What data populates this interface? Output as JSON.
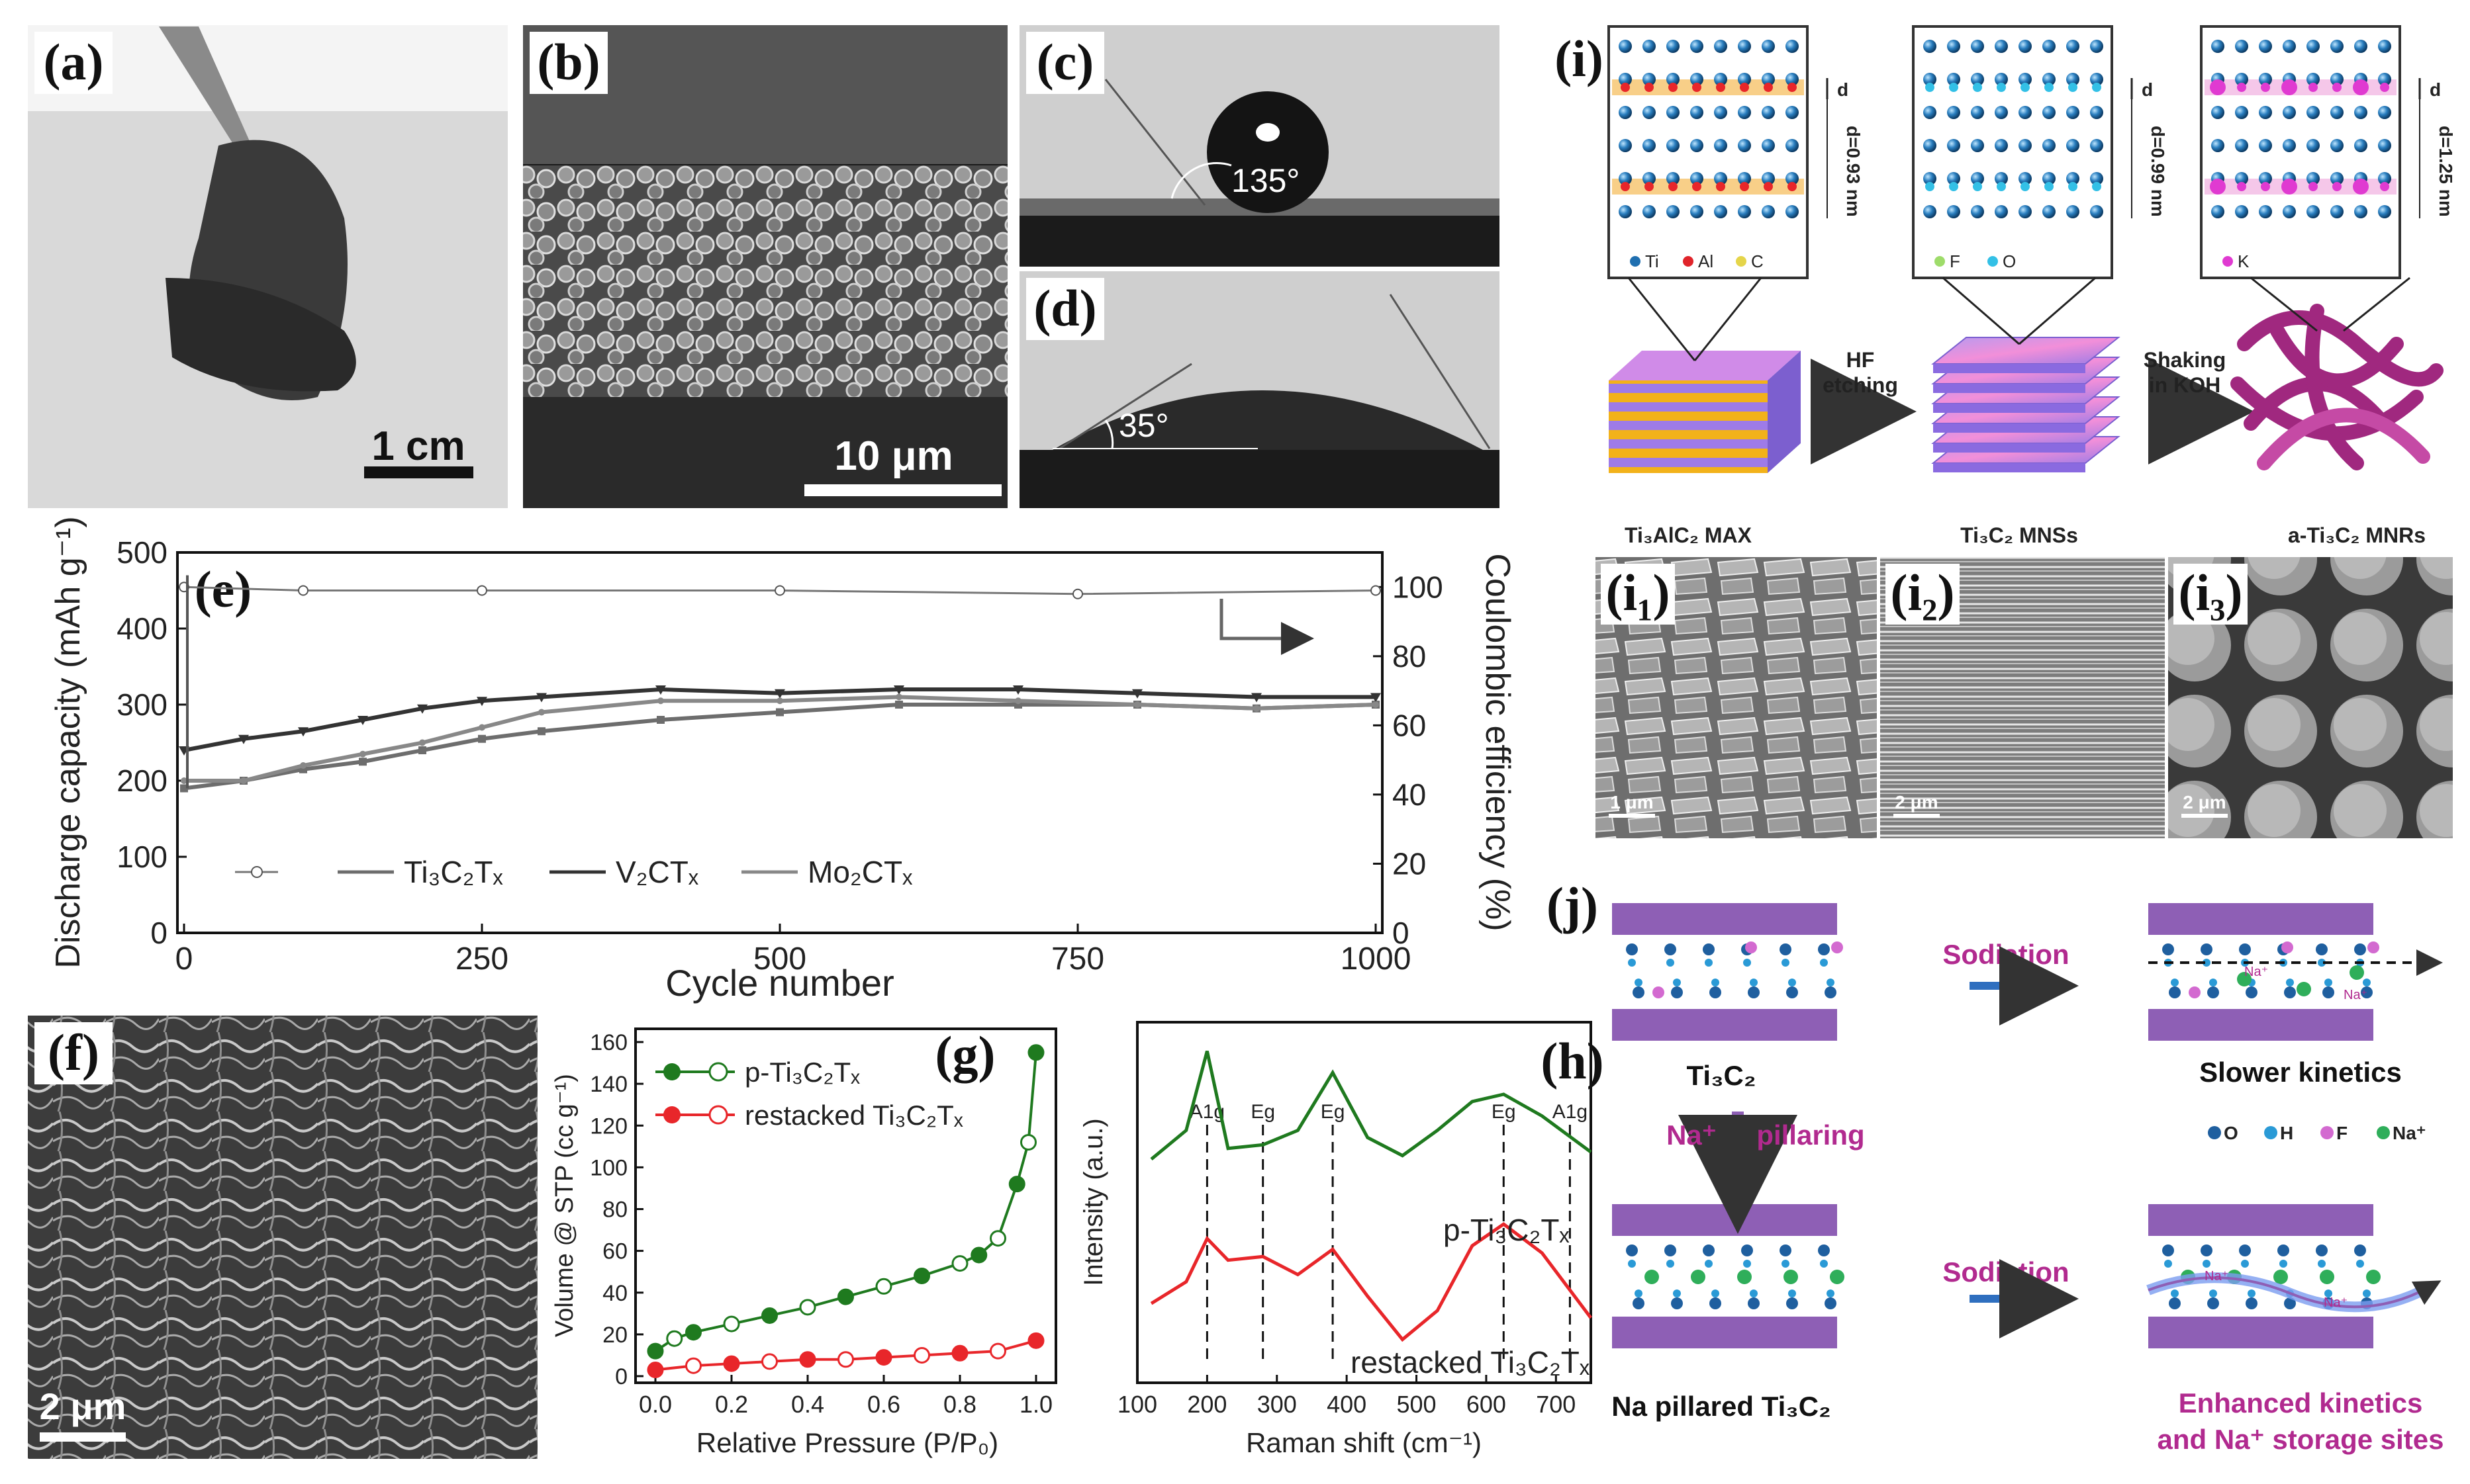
{
  "panels": {
    "a": {
      "label": "(a)",
      "scale_bar": "1 cm"
    },
    "b": {
      "label": "(b)",
      "scale_bar": "10 μm"
    },
    "c": {
      "label": "(c)",
      "angle": "135°"
    },
    "d": {
      "label": "(d)",
      "angle": "35°"
    },
    "e": {
      "label": "(e)"
    },
    "f": {
      "label": "(f)",
      "scale_bar": "2 μm"
    },
    "g": {
      "label": "(g)"
    },
    "h": {
      "label": "(h)"
    },
    "i": {
      "label": "(i)",
      "spacing": [
        "d=0.93 nm",
        "d=0.99 nm",
        "d=1.25 nm"
      ],
      "d_mark": "d",
      "legend1": [
        "Ti",
        "Al",
        "C"
      ],
      "legend2": [
        "F",
        "O"
      ],
      "legend3": [
        "K"
      ],
      "step1": [
        "HF",
        "etching"
      ],
      "step2": [
        "Shaking",
        "in KOH"
      ],
      "names": [
        "Ti₃AlC₂ MAX",
        "Ti₃C₂ MNSs",
        "a-Ti₃C₂ MNRs"
      ],
      "sub_labels": [
        "(i₁)",
        "(i₂)",
        "(i₃)"
      ],
      "scale_bars": [
        "1 μm",
        "2 μm",
        "2 μm"
      ]
    },
    "j": {
      "label": "(j)",
      "sodiation": "Sodiation",
      "top_material": "Ti₃C₂",
      "pillaring_na": "Na⁺",
      "pillaring_word": "pillaring",
      "bottom_material": "Na pillared Ti₃C₂",
      "slow": "Slower kinetics",
      "enhanced": [
        "Enhanced kinetics",
        "and Na⁺ storage sites"
      ],
      "legend": [
        "O",
        "H",
        "F",
        "Na⁺"
      ],
      "na_small": "Na⁺"
    }
  },
  "chart_data": [
    {
      "panel": "e",
      "type": "line",
      "xlabel": "Cycle number",
      "ylabel": "Discharge capacity (mAh g⁻¹)",
      "ylabel2": "Coulombic efficiency (%)",
      "xlim": [
        0,
        1000
      ],
      "ylim": [
        0,
        500
      ],
      "ylim2": [
        0,
        110
      ],
      "xticks": [
        0,
        250,
        500,
        750,
        1000
      ],
      "yticks": [
        0,
        100,
        200,
        300,
        400,
        500
      ],
      "yticks2": [
        0,
        20,
        40,
        60,
        80,
        100
      ],
      "legend": [
        "Ti₃C₂Tₓ",
        "V₂CTₓ",
        "Mo₂CTₓ"
      ],
      "series": [
        {
          "name": "Ti₃C₂Tₓ",
          "x": [
            0,
            50,
            100,
            150,
            200,
            250,
            300,
            400,
            500,
            600,
            700,
            800,
            900,
            1000
          ],
          "y": [
            190,
            200,
            215,
            225,
            240,
            255,
            265,
            280,
            290,
            300,
            300,
            300,
            295,
            300
          ]
        },
        {
          "name": "V₂CTₓ",
          "x": [
            0,
            50,
            100,
            150,
            200,
            250,
            300,
            400,
            500,
            600,
            700,
            800,
            900,
            1000
          ],
          "y": [
            240,
            255,
            265,
            280,
            295,
            305,
            310,
            320,
            315,
            320,
            320,
            315,
            310,
            310
          ]
        },
        {
          "name": "Mo₂CTₓ",
          "x": [
            0,
            50,
            100,
            150,
            200,
            250,
            300,
            400,
            500,
            600,
            700,
            800,
            900,
            1000
          ],
          "y": [
            200,
            200,
            220,
            235,
            250,
            270,
            290,
            305,
            305,
            310,
            305,
            300,
            295,
            300
          ]
        },
        {
          "name": "Coulombic efficiency",
          "x": [
            0,
            100,
            250,
            500,
            750,
            1000
          ],
          "y": [
            100,
            99,
            99,
            99,
            98,
            99
          ]
        }
      ]
    },
    {
      "panel": "g",
      "type": "scatter",
      "xlabel": "Relative Pressure (P/P₀)",
      "ylabel": "Volume @ STP (cc g⁻¹)",
      "xlim": [
        0,
        1.0
      ],
      "ylim": [
        0,
        160
      ],
      "xticks": [
        0.0,
        0.2,
        0.4,
        0.6,
        0.8,
        1.0
      ],
      "yticks": [
        0,
        20,
        40,
        60,
        80,
        100,
        120,
        140,
        160
      ],
      "legend": [
        "p-Ti₃C₂Tₓ",
        "restacked Ti₃C₂Tₓ"
      ],
      "series": [
        {
          "name": "p-Ti₃C₂Tₓ",
          "x": [
            0.0,
            0.05,
            0.1,
            0.2,
            0.3,
            0.4,
            0.5,
            0.6,
            0.7,
            0.8,
            0.85,
            0.9,
            0.95,
            0.98,
            1.0
          ],
          "y": [
            12,
            18,
            21,
            25,
            29,
            33,
            38,
            43,
            48,
            54,
            58,
            66,
            92,
            112,
            155
          ]
        },
        {
          "name": "restacked Ti₃C₂Tₓ",
          "x": [
            0.0,
            0.1,
            0.2,
            0.3,
            0.4,
            0.5,
            0.6,
            0.7,
            0.8,
            0.9,
            1.0
          ],
          "y": [
            3,
            5,
            6,
            7,
            8,
            8,
            9,
            10,
            11,
            12,
            17
          ]
        }
      ]
    },
    {
      "panel": "h",
      "type": "line",
      "xlabel": "Raman shift (cm⁻¹)",
      "ylabel": "Intensity (a.u.)",
      "xlim": [
        100,
        750
      ],
      "xticks": [
        100,
        200,
        300,
        400,
        500,
        600,
        700
      ],
      "peaks": [
        {
          "x": 200,
          "label": "A1g"
        },
        {
          "x": 280,
          "label": "Eg"
        },
        {
          "x": 380,
          "label": "Eg"
        },
        {
          "x": 625,
          "label": "Eg"
        },
        {
          "x": 720,
          "label": "A1g"
        }
      ],
      "series": [
        {
          "name": "p-Ti₃C₂Tₓ",
          "x": [
            120,
            170,
            200,
            230,
            280,
            330,
            380,
            430,
            480,
            530,
            580,
            625,
            680,
            750
          ],
          "y": [
            0.62,
            0.7,
            0.92,
            0.65,
            0.66,
            0.7,
            0.86,
            0.68,
            0.63,
            0.7,
            0.78,
            0.8,
            0.74,
            0.64
          ]
        },
        {
          "name": "restacked Ti₃C₂Tₓ",
          "x": [
            120,
            170,
            200,
            230,
            280,
            330,
            380,
            430,
            480,
            530,
            580,
            625,
            680,
            750
          ],
          "y": [
            0.22,
            0.28,
            0.4,
            0.34,
            0.35,
            0.3,
            0.37,
            0.24,
            0.12,
            0.2,
            0.38,
            0.44,
            0.36,
            0.18
          ]
        }
      ]
    }
  ],
  "colors": {
    "green": "#1f7a1f",
    "red": "#e8262a",
    "purple": "#8e5fb5",
    "magenta": "#b12a8f",
    "blue_arrow": "#2f6fbf"
  }
}
